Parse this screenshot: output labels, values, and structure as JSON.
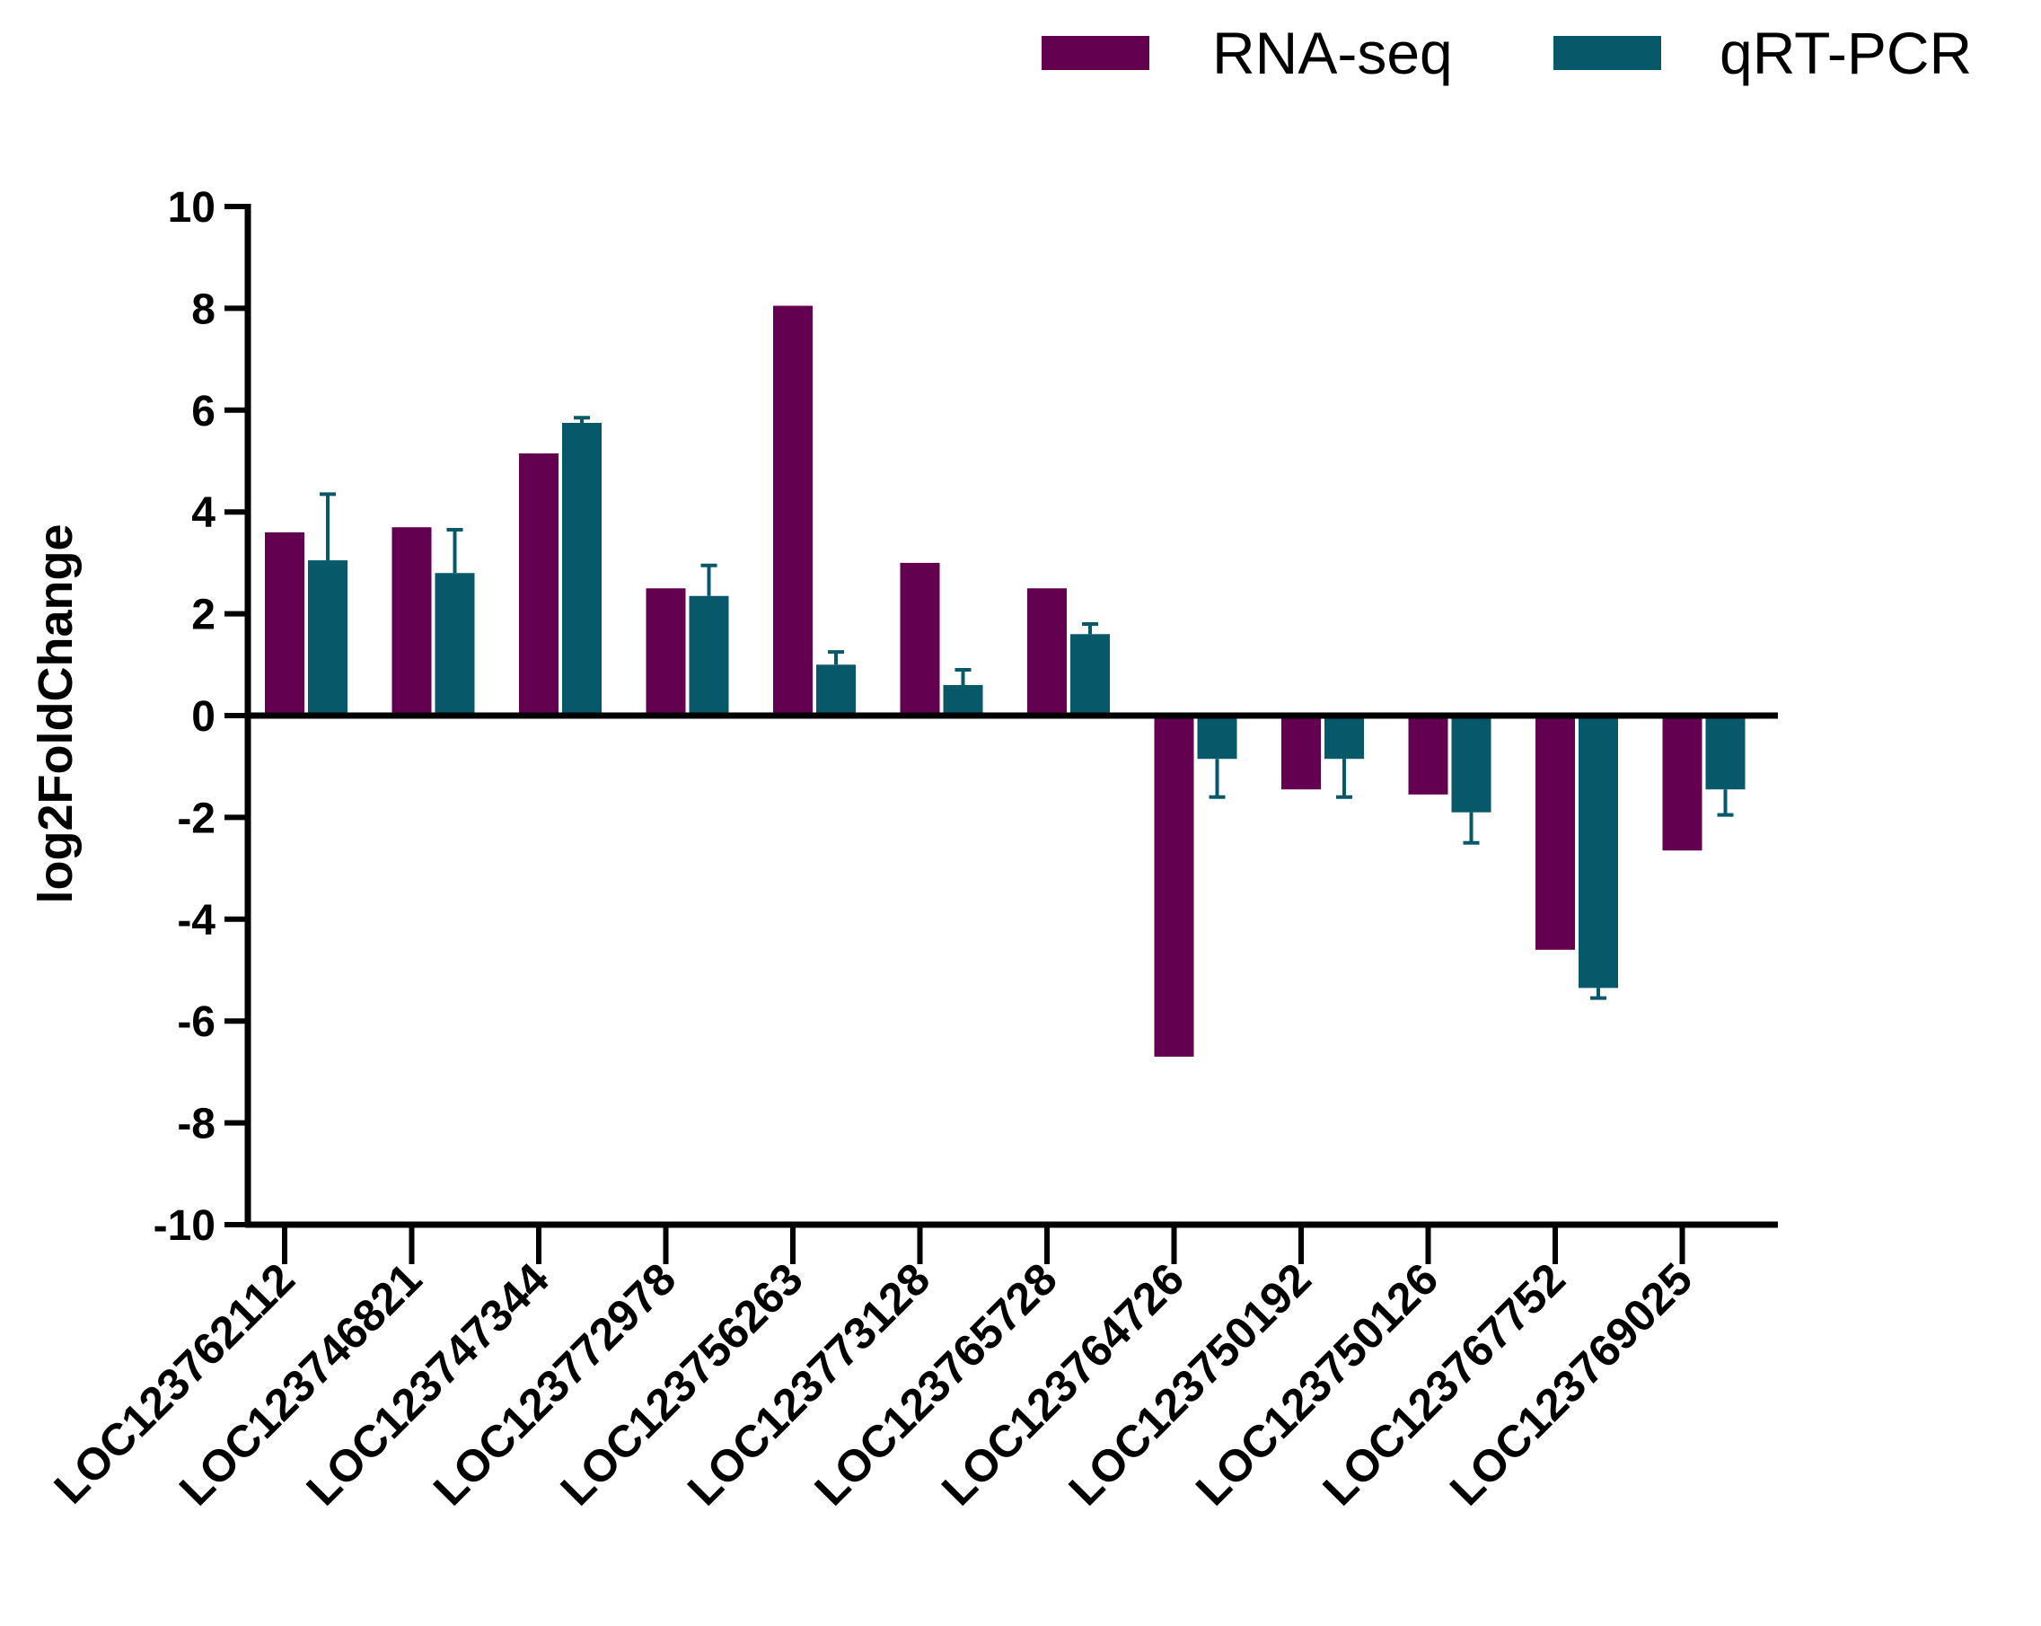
{
  "chart_data": {
    "type": "bar",
    "title": "",
    "xlabel": "",
    "ylabel": "log2FoldChange",
    "ylim": [
      -10,
      10
    ],
    "yticks": [
      10,
      8,
      6,
      4,
      2,
      0,
      -2,
      -4,
      -6,
      -8,
      -10
    ],
    "ytick_labels": [
      "10",
      "8",
      "6",
      "4",
      "2",
      "0",
      "-2",
      "-4",
      "-6",
      "-8",
      "-10"
    ],
    "grid": false,
    "legend_position": "top-right",
    "categories": [
      "LOC123762112",
      "LOC123746821",
      "LOC123747344",
      "LOC123772978",
      "LOC123756263",
      "LOC123773128",
      "LOC123765728",
      "LOC123764726",
      "LOC123750192",
      "LOC123750126",
      "LOC123767752",
      "LOC123769025"
    ],
    "series": [
      {
        "name": "RNA-seq",
        "color": "#640050",
        "values": [
          3.6,
          3.7,
          5.15,
          2.5,
          8.05,
          3.0,
          2.5,
          -6.7,
          -1.45,
          -1.55,
          -4.6,
          -2.65
        ]
      },
      {
        "name": "qRT-PCR",
        "color": "#075869",
        "values": [
          3.05,
          2.8,
          5.75,
          2.35,
          1.0,
          0.6,
          1.6,
          -0.85,
          -0.85,
          -1.9,
          -5.35,
          -1.45
        ],
        "error": [
          1.3,
          0.85,
          0.1,
          0.6,
          0.25,
          0.3,
          0.2,
          0.75,
          0.75,
          0.6,
          0.2,
          0.5
        ]
      }
    ]
  }
}
